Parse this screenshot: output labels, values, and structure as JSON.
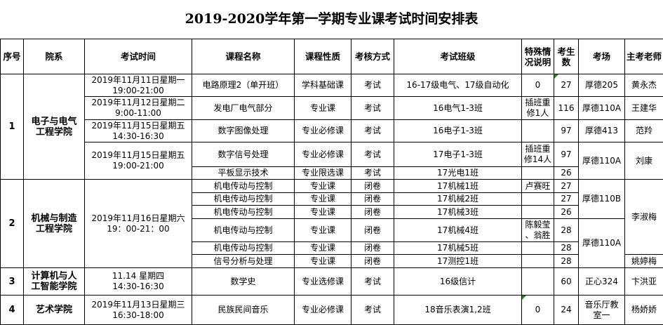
{
  "title": "2019-2020学年第一学期专业课考试时间安排表",
  "headers": [
    "序号",
    "院系",
    "考试时间",
    "课程名称",
    "课程性质",
    "考核方式",
    "考试班级",
    "特殊情况说明",
    "考生数",
    "考场",
    "主考老师"
  ],
  "rows": [
    [
      {
        "t": "1",
        "rs": 5,
        "c": "bold"
      },
      {
        "t": "电子与电气\n工程学院",
        "rs": 5,
        "c": "bold"
      },
      {
        "t": "2019年11月11日星期一\n19:00-21:00"
      },
      {
        "t": "电路原理2（单开班）"
      },
      {
        "t": "学科基础课"
      },
      {
        "t": "考试"
      },
      {
        "t": "16-17级电气、17级自动化"
      },
      {
        "t": "0"
      },
      {
        "t": "27",
        "flag": true
      },
      {
        "t": "厚德205"
      },
      {
        "t": "黄永杰"
      }
    ],
    [
      {
        "t": "2019年11月12日星期二\n9:00-11:00"
      },
      {
        "t": "发电厂电气部分"
      },
      {
        "t": "专业课"
      },
      {
        "t": "考试"
      },
      {
        "t": "16电气1-3班"
      },
      {
        "t": "插班重\n修1人"
      },
      {
        "t": "116"
      },
      {
        "t": "厚德110A"
      },
      {
        "t": "王建华"
      }
    ],
    [
      {
        "t": "2019年11月15日星期五\n14:30-16:30"
      },
      {
        "t": "数字图像处理"
      },
      {
        "t": "专业必修课"
      },
      {
        "t": "考试"
      },
      {
        "t": "16电子1-3班"
      },
      {
        "t": ""
      },
      {
        "t": "97"
      },
      {
        "t": "厚德413"
      },
      {
        "t": "范羚"
      }
    ],
    [
      {
        "t": "2019年11月15日星期五\n19:00-21:00",
        "rs": 2
      },
      {
        "t": "数字信号处理"
      },
      {
        "t": "专业必修课"
      },
      {
        "t": "考试"
      },
      {
        "t": "17电子1-3班"
      },
      {
        "t": "插班重\n修14人"
      },
      {
        "t": "97"
      },
      {
        "t": "厚德110A",
        "rs": 2
      },
      {
        "t": "刘康",
        "rs": 2
      }
    ],
    [
      {
        "t": "平板显示技术"
      },
      {
        "t": "专业限选课"
      },
      {
        "t": "考试"
      },
      {
        "t": "17光电1班"
      },
      {
        "t": ""
      },
      {
        "t": "26"
      }
    ],
    [
      {
        "t": "2",
        "rs": 6,
        "c": "bold"
      },
      {
        "t": "机械与制造\n工程学院",
        "rs": 6,
        "c": "bold"
      },
      {
        "t": "2019年11月16日星期六\n19：00-21：00",
        "rs": 6
      },
      {
        "t": "机电传动与控制"
      },
      {
        "t": "专业课"
      },
      {
        "t": "闭卷"
      },
      {
        "t": "17机械1班"
      },
      {
        "t": "卢赛旺"
      },
      {
        "t": "27"
      },
      {
        "t": "厚德110B",
        "rs": 3
      },
      {
        "t": "李淑梅",
        "rs": 5
      }
    ],
    [
      {
        "t": "机电传动与控制"
      },
      {
        "t": "专业课"
      },
      {
        "t": "闭卷"
      },
      {
        "t": "17机械2班"
      },
      {
        "t": ""
      },
      {
        "t": "27"
      }
    ],
    [
      {
        "t": "机电传动与控制"
      },
      {
        "t": "专业课"
      },
      {
        "t": "闭卷"
      },
      {
        "t": "17机械3班"
      },
      {
        "t": ""
      },
      {
        "t": "26"
      }
    ],
    [
      {
        "t": "机电传动与控制"
      },
      {
        "t": "专业课"
      },
      {
        "t": "闭卷"
      },
      {
        "t": "17机械4班"
      },
      {
        "t": "陈毅莹\n、翁胜"
      },
      {
        "t": "28"
      },
      {
        "t": "厚德110A",
        "rs": 3
      }
    ],
    [
      {
        "t": "机电传动与控制"
      },
      {
        "t": "专业课"
      },
      {
        "t": "闭卷"
      },
      {
        "t": "17机械5班"
      },
      {
        "t": ""
      },
      {
        "t": "28"
      }
    ],
    [
      {
        "t": "信号分析与处理"
      },
      {
        "t": "专业课"
      },
      {
        "t": "闭卷"
      },
      {
        "t": "17测控1班"
      },
      {
        "t": ""
      },
      {
        "t": "28"
      },
      {
        "t": "姚婷梅"
      }
    ],
    [
      {
        "t": "3",
        "c": "bold"
      },
      {
        "t": "计算机与人\n工智能学院",
        "c": "bold"
      },
      {
        "t": "11.14 星期四\n14:30-16:30"
      },
      {
        "t": "数学史"
      },
      {
        "t": "专业选修课"
      },
      {
        "t": "考试"
      },
      {
        "t": "16级信计"
      },
      {
        "t": ""
      },
      {
        "t": "60"
      },
      {
        "t": "正心324"
      },
      {
        "t": "卞洪亚"
      }
    ],
    [
      {
        "t": "4",
        "c": "bold"
      },
      {
        "t": "艺术学院",
        "c": "bold"
      },
      {
        "t": "2019年11月13日星期三\n16:30-18:00"
      },
      {
        "t": "民族民间音乐"
      },
      {
        "t": "专业必修课"
      },
      {
        "t": "考试"
      },
      {
        "t": "18音乐表演1,2班"
      },
      {
        "t": "0",
        "flag": true
      },
      {
        "t": "24"
      },
      {
        "t": "音乐厅教\n室一"
      },
      {
        "t": "杨娇娇"
      }
    ]
  ],
  "colors": {
    "border": "#000000",
    "comment_flag": "#1a8a1a"
  }
}
